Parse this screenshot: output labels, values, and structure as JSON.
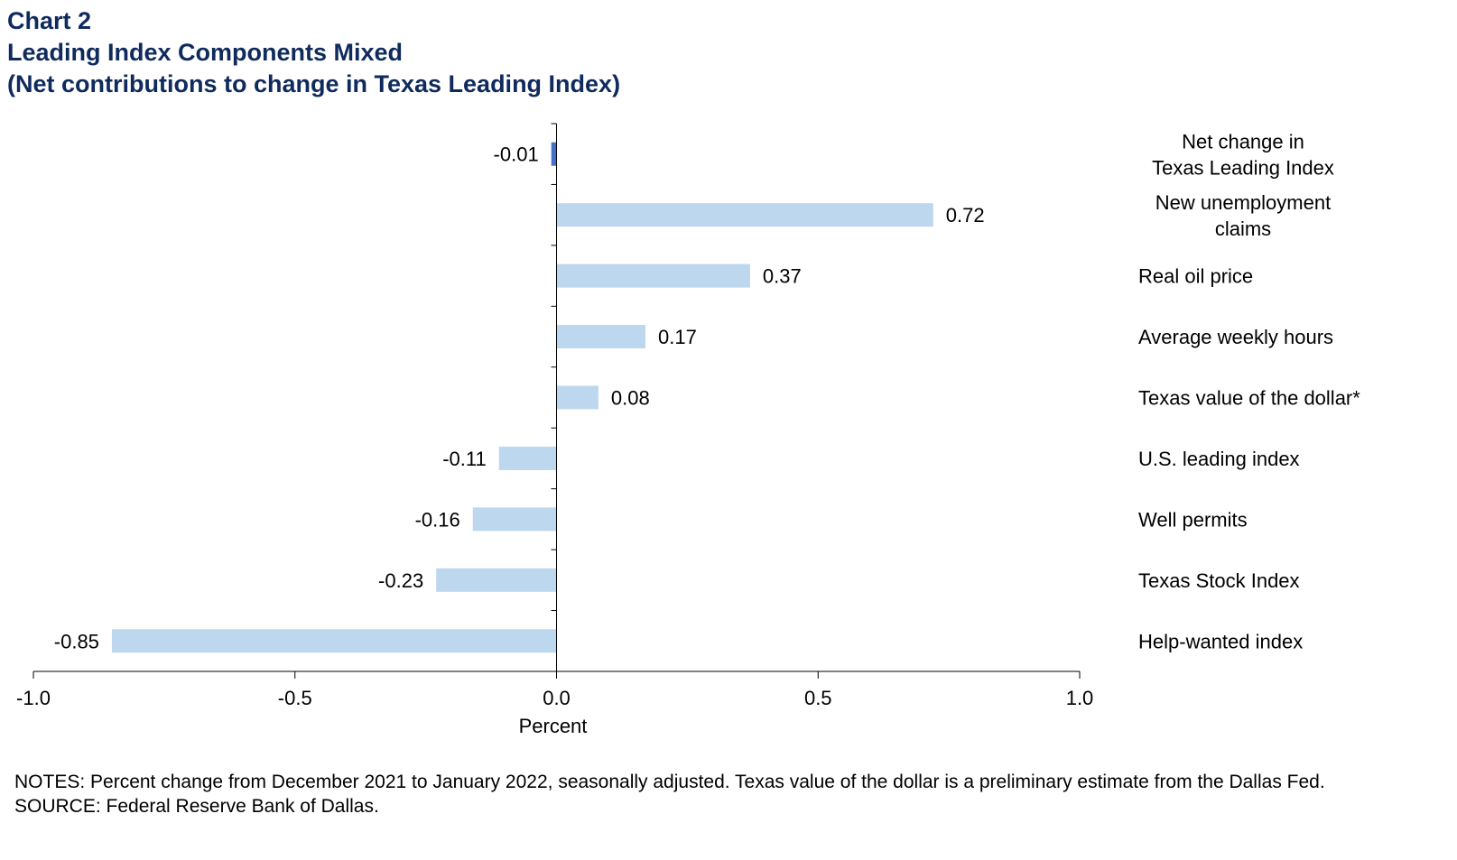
{
  "header": {
    "chart_number": "Chart 2",
    "title": "Leading Index Components Mixed",
    "subtitle": "(Net contributions to change in Texas Leading Index)"
  },
  "notes": {
    "notes_text": "NOTES: Percent change from December 2021 to January 2022, seasonally adjusted. Texas value of the dollar is a preliminary estimate from the Dallas Fed.",
    "source_text": "SOURCE: Federal Reserve Bank of Dallas."
  },
  "colors": {
    "title": "#0f2a5c",
    "net_change_bar": "#4472c4",
    "component_bar": "#bdd7ee",
    "axis": "#000000"
  },
  "chart_data": {
    "type": "bar",
    "orientation": "horizontal",
    "title": "Leading Index Components Mixed",
    "subtitle": "(Net contributions to change in Texas Leading Index)",
    "xlabel": "Percent",
    "ylabel": "",
    "xlim": [
      -1.0,
      1.0
    ],
    "xticks": [
      -1.0,
      -0.5,
      0.0,
      0.5,
      1.0
    ],
    "xtick_labels": [
      "-1.0",
      "-0.5",
      "0.0",
      "0.5",
      "1.0"
    ],
    "grid": false,
    "categories": [
      "Net change in\nTexas Leading Index",
      "New unemployment\nclaims",
      "Real oil price",
      "Average weekly hours",
      "Texas value of the dollar*",
      "U.S. leading index",
      "Well permits",
      "Texas Stock Index",
      "Help-wanted index"
    ],
    "values": [
      -0.01,
      0.72,
      0.37,
      0.17,
      0.08,
      -0.11,
      -0.16,
      -0.23,
      -0.85
    ],
    "value_labels": [
      "-0.01",
      "0.72",
      "0.37",
      "0.17",
      "0.08",
      "-0.11",
      "-0.16",
      "-0.23",
      "-0.85"
    ],
    "highlight_index": 0
  }
}
